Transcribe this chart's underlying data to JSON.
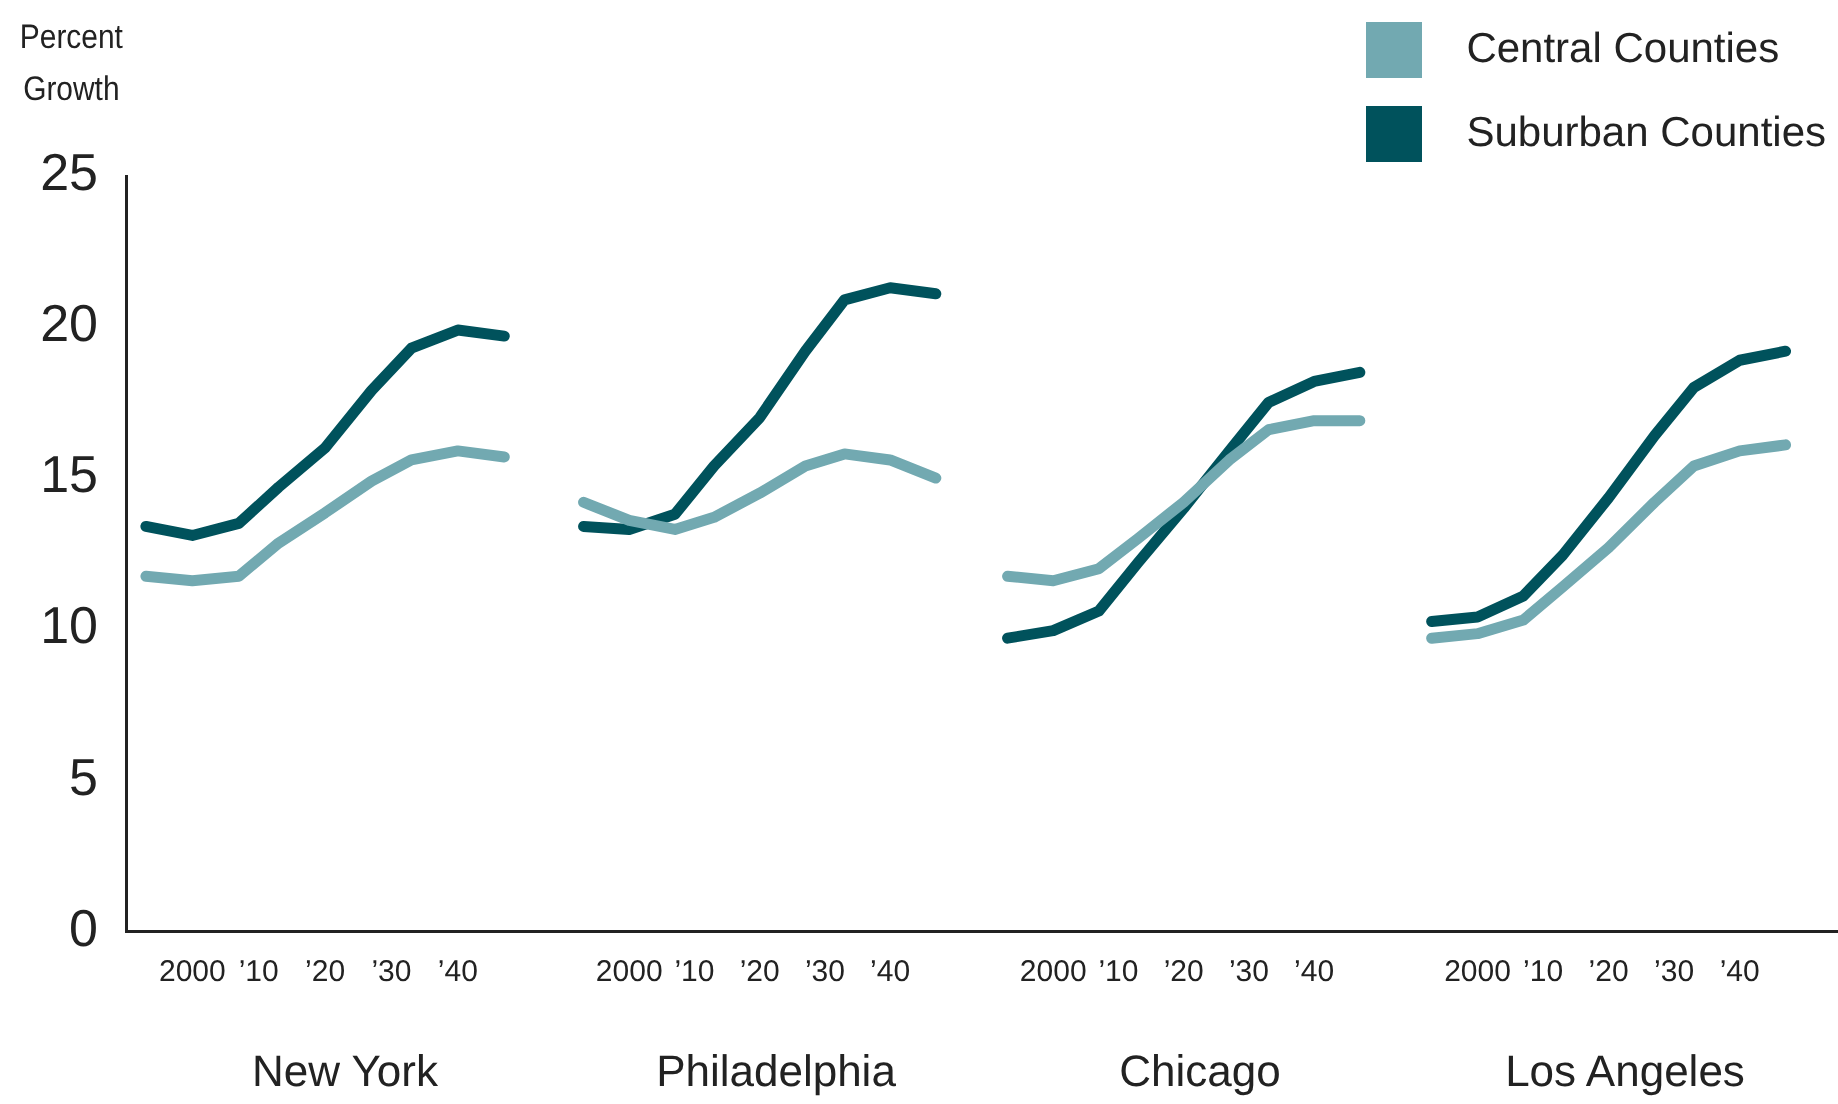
{
  "chart_data": [
    {
      "type": "line",
      "xlabel": "New York",
      "ylabel": "Percent Growth",
      "marker": "none",
      "x": [
        1993,
        2000,
        2007,
        2013,
        2020,
        2027,
        2033,
        2040,
        2047
      ],
      "xlim": [
        1990,
        2056
      ],
      "xticks": [
        {
          "value": 2000,
          "label": "2000"
        },
        {
          "value": 2010,
          "label": "’10"
        },
        {
          "value": 2020,
          "label": "’20"
        },
        {
          "value": 2030,
          "label": "’30"
        },
        {
          "value": 2040,
          "label": "’40"
        }
      ],
      "ylim": [
        0,
        25
      ],
      "yticks": [
        0,
        5,
        10,
        15,
        20,
        25
      ],
      "series": [
        {
          "color": "#72a9b1",
          "values": [
            11.75,
            11.6,
            11.75,
            12.85,
            13.85,
            14.9,
            15.6,
            15.9,
            15.7
          ]
        },
        {
          "color": "#00525c",
          "values": [
            13.4,
            13.1,
            13.5,
            14.7,
            16.0,
            17.9,
            19.3,
            19.9,
            19.7
          ]
        }
      ]
    },
    {
      "type": "line",
      "xlabel": "Philadelphia",
      "marker": "none",
      "tick_labels": "x",
      "x": [
        1993,
        2000,
        2007,
        2013,
        2020,
        2027,
        2033,
        2040,
        2047
      ],
      "xlim": [
        1990,
        2055
      ],
      "xticks": [
        {
          "value": 2000,
          "label": "2000"
        },
        {
          "value": 2010,
          "label": "’10"
        },
        {
          "value": 2020,
          "label": "’20"
        },
        {
          "value": 2030,
          "label": "’30"
        },
        {
          "value": 2040,
          "label": "’40"
        }
      ],
      "ylim": [
        0,
        25
      ],
      "yticks": [
        0,
        5,
        10,
        15,
        20,
        25
      ],
      "series": [
        {
          "color": "#72a9b1",
          "values": [
            14.2,
            13.6,
            13.3,
            13.7,
            14.5,
            15.4,
            15.8,
            15.6,
            15.0
          ]
        },
        {
          "color": "#00525c",
          "values": [
            13.4,
            13.3,
            13.8,
            15.4,
            17.0,
            19.2,
            20.9,
            21.3,
            21.1
          ]
        }
      ]
    },
    {
      "type": "line",
      "xlabel": "Chicago",
      "marker": "none",
      "tick_labels": "x",
      "x": [
        1993,
        2000,
        2007,
        2013,
        2020,
        2027,
        2033,
        2040,
        2047
      ],
      "xlim": [
        1990,
        2055
      ],
      "xticks": [
        {
          "value": 2000,
          "label": "2000"
        },
        {
          "value": 2010,
          "label": "’10"
        },
        {
          "value": 2020,
          "label": "’20"
        },
        {
          "value": 2030,
          "label": "’30"
        },
        {
          "value": 2040,
          "label": "’40"
        }
      ],
      "ylim": [
        0,
        25
      ],
      "yticks": [
        0,
        5,
        10,
        15,
        20,
        25
      ],
      "series": [
        {
          "color": "#72a9b1",
          "values": [
            11.75,
            11.6,
            12.0,
            13.0,
            14.2,
            15.6,
            16.6,
            16.9,
            16.9
          ]
        },
        {
          "color": "#00525c",
          "values": [
            9.7,
            9.95,
            10.6,
            12.2,
            14.0,
            15.9,
            17.5,
            18.2,
            18.5
          ]
        }
      ]
    },
    {
      "type": "line",
      "xlabel": "Los Angeles",
      "marker": "none",
      "tick_labels": "x",
      "legend": "top",
      "x": [
        1993,
        2000,
        2007,
        2013,
        2020,
        2027,
        2033,
        2040,
        2047
      ],
      "xlim": [
        1990,
        2055
      ],
      "xticks": [
        {
          "value": 2000,
          "label": "2000"
        },
        {
          "value": 2010,
          "label": "’10"
        },
        {
          "value": 2020,
          "label": "’20"
        },
        {
          "value": 2030,
          "label": "’30"
        },
        {
          "value": 2040,
          "label": "’40"
        }
      ],
      "ylim": [
        0,
        25
      ],
      "yticks": [
        0,
        5,
        10,
        15,
        20,
        25
      ],
      "series": [
        {
          "name": "Central Counties",
          "color": "#72a9b1",
          "values": [
            9.7,
            9.85,
            10.3,
            11.4,
            12.7,
            14.2,
            15.4,
            15.9,
            16.1
          ]
        },
        {
          "name": "Suburban Counties",
          "color": "#00525c",
          "values": [
            10.25,
            10.4,
            11.1,
            12.45,
            14.35,
            16.4,
            18.0,
            18.9,
            19.2
          ]
        }
      ]
    }
  ]
}
